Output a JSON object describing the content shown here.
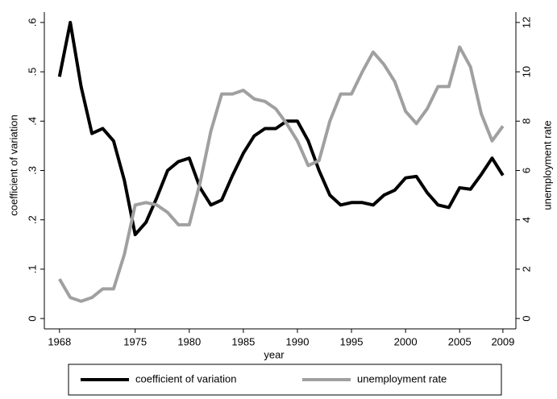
{
  "chart_data": {
    "type": "line",
    "xlabel": "year",
    "ylabel": "coefficient of variation",
    "y2label": "unemployment rate",
    "x": [
      1968,
      1969,
      1970,
      1971,
      1972,
      1973,
      1974,
      1975,
      1976,
      1977,
      1978,
      1979,
      1980,
      1981,
      1982,
      1983,
      1984,
      1985,
      1986,
      1987,
      1988,
      1989,
      1990,
      1991,
      1992,
      1993,
      1994,
      1995,
      1996,
      1997,
      1998,
      1999,
      2000,
      2001,
      2002,
      2003,
      2004,
      2005,
      2006,
      2007,
      2008,
      2009
    ],
    "series": [
      {
        "name": "coefficient of variation",
        "color": "#000000",
        "axis": "y",
        "values": [
          0.49,
          0.6,
          0.47,
          0.375,
          0.385,
          0.36,
          0.28,
          0.17,
          0.195,
          0.245,
          0.3,
          0.318,
          0.325,
          0.265,
          0.23,
          0.24,
          0.29,
          0.335,
          0.37,
          0.385,
          0.385,
          0.4,
          0.4,
          0.36,
          0.3,
          0.25,
          0.23,
          0.235,
          0.235,
          0.23,
          0.25,
          0.26,
          0.285,
          0.288,
          0.255,
          0.23,
          0.225,
          0.265,
          0.262,
          0.292,
          0.325,
          0.29
        ]
      },
      {
        "name": "unemployment rate",
        "color": "#a0a0a0",
        "axis": "y2",
        "values": [
          1.6,
          0.85,
          0.7,
          0.85,
          1.2,
          1.2,
          2.6,
          4.6,
          4.7,
          4.6,
          4.3,
          3.8,
          3.8,
          5.5,
          7.6,
          9.1,
          9.1,
          9.25,
          8.9,
          8.8,
          8.5,
          7.9,
          7.2,
          6.2,
          6.4,
          8.0,
          9.1,
          9.1,
          10.0,
          10.8,
          10.3,
          9.6,
          8.4,
          7.9,
          8.5,
          9.4,
          9.4,
          11.0,
          10.2,
          8.3,
          7.2,
          7.8
        ]
      }
    ],
    "xlim": [
      1966.6,
      2010.2
    ],
    "xticks": [
      1968,
      1975,
      1980,
      1985,
      1990,
      1995,
      2000,
      2005,
      2009
    ],
    "ylim": [
      -0.021,
      0.621
    ],
    "yticks": [
      0,
      {
        "value": 0.1,
        "label": ".1"
      },
      {
        "value": 0.2,
        "label": ".2"
      },
      {
        "value": 0.3,
        "label": ".3"
      },
      {
        "value": 0.4,
        "label": ".4"
      },
      {
        "value": 0.5,
        "label": ".5"
      },
      {
        "value": 0.6,
        "label": ".6"
      }
    ],
    "y2lim": [
      -0.42,
      12.42
    ],
    "y2ticks": [
      0,
      2,
      4,
      6,
      8,
      10,
      12
    ],
    "legend": "bottom"
  }
}
